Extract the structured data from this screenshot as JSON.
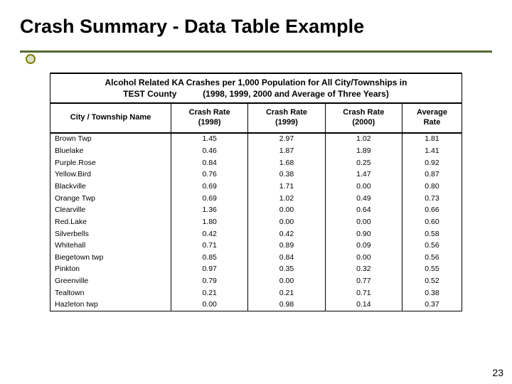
{
  "title": "Crash Summary - Data Table Example",
  "caption_line1": "Alcohol Related KA Crashes per 1,000 Population for  All City/Townships in",
  "caption_line2": "TEST County           (1998, 1999, 2000 and Average of Three Years)",
  "columns": {
    "c0": "City / Township Name",
    "c1a": "Crash Rate",
    "c1b": "(1998)",
    "c2a": "Crash Rate",
    "c2b": "(1999)",
    "c3a": "Crash Rate",
    "c3b": "(2000)",
    "c4a": "Average",
    "c4b": "Rate"
  },
  "rows": [
    {
      "name": "Brown Twp",
      "r1998": "1.45",
      "r1999": "2.97",
      "r2000": "1.02",
      "avg": "1.81"
    },
    {
      "name": "Bluelake",
      "r1998": "0.46",
      "r1999": "1.87",
      "r2000": "1.89",
      "avg": "1.41"
    },
    {
      "name": "Purple.Rose",
      "r1998": "0.84",
      "r1999": "1.68",
      "r2000": "0.25",
      "avg": "0.92"
    },
    {
      "name": "Yellow.Bird",
      "r1998": "0.76",
      "r1999": "0.38",
      "r2000": "1.47",
      "avg": "0.87"
    },
    {
      "name": "Blackville",
      "r1998": "0.69",
      "r1999": "1.71",
      "r2000": "0.00",
      "avg": "0.80"
    },
    {
      "name": "Orange Twp",
      "r1998": "0.69",
      "r1999": "1.02",
      "r2000": "0.49",
      "avg": "0.73"
    },
    {
      "name": "Clearville",
      "r1998": "1.36",
      "r1999": "0.00",
      "r2000": "0.64",
      "avg": "0.66"
    },
    {
      "name": "Red.Lake",
      "r1998": "1.80",
      "r1999": "0.00",
      "r2000": "0.00",
      "avg": "0.60"
    },
    {
      "name": "Silverbells",
      "r1998": "0.42",
      "r1999": "0.42",
      "r2000": "0.90",
      "avg": "0.58"
    },
    {
      "name": "Whitehall",
      "r1998": "0.71",
      "r1999": "0.89",
      "r2000": "0.09",
      "avg": "0.56"
    },
    {
      "name": "Biegetown twp",
      "r1998": "0.85",
      "r1999": "0.84",
      "r2000": "0.00",
      "avg": "0.56"
    },
    {
      "name": "Pinkton",
      "r1998": "0.97",
      "r1999": "0.35",
      "r2000": "0.32",
      "avg": "0.55"
    },
    {
      "name": "Greenville",
      "r1998": "0.79",
      "r1999": "0.00",
      "r2000": "0.77",
      "avg": "0.52"
    },
    {
      "name": "Tealtown",
      "r1998": "0.21",
      "r1999": "0.21",
      "r2000": "0.71",
      "avg": "0.38"
    },
    {
      "name": "Hazleton twp",
      "r1998": "0.00",
      "r1999": "0.98",
      "r2000": "0.14",
      "avg": "0.37"
    }
  ],
  "page_number": "23",
  "colors": {
    "underline": "#556b2f",
    "bullet_border": "#808000",
    "bullet_fill": "#d8decb"
  }
}
